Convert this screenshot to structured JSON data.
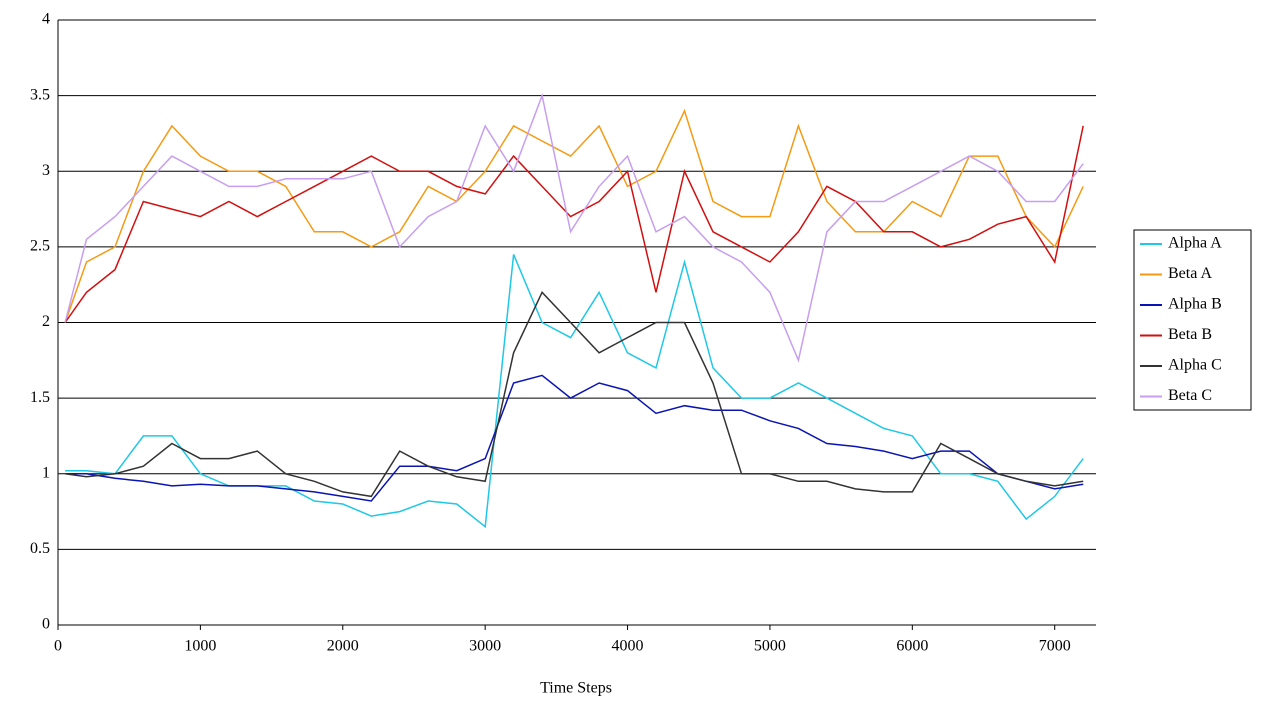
{
  "chart_data": {
    "type": "line",
    "xlabel": "Time Steps",
    "x": [
      50,
      200,
      400,
      600,
      800,
      1000,
      1200,
      1400,
      1600,
      1800,
      2000,
      2200,
      2400,
      2600,
      2800,
      3000,
      3200,
      3400,
      3600,
      3800,
      4000,
      4200,
      4400,
      4600,
      4800,
      5000,
      5200,
      5400,
      5600,
      5800,
      6000,
      6200,
      6400,
      6600,
      6800,
      7000,
      7200
    ],
    "xlim": [
      0,
      7290
    ],
    "xticks": [
      0,
      1000,
      2000,
      3000,
      4000,
      5000,
      6000,
      7000
    ],
    "ylim": [
      0,
      4
    ],
    "yticks": [
      0,
      0.5,
      1,
      1.5,
      2,
      2.5,
      3,
      3.5,
      4
    ],
    "grid": true,
    "legend": "right",
    "series": [
      {
        "name": "Alpha A",
        "color": "#1ec8e6",
        "values": [
          1.02,
          1.02,
          1.0,
          1.25,
          1.25,
          1.0,
          0.92,
          0.92,
          0.92,
          0.82,
          0.8,
          0.72,
          0.75,
          0.82,
          0.8,
          0.65,
          2.45,
          2.0,
          1.9,
          2.2,
          1.8,
          1.7,
          2.4,
          1.7,
          1.5,
          1.5,
          1.6,
          1.5,
          1.4,
          1.3,
          1.25,
          1.0,
          1.0,
          0.95,
          0.7,
          0.85,
          1.1
        ]
      },
      {
        "name": "Beta A",
        "color": "#f59a12",
        "values": [
          2.0,
          2.4,
          2.5,
          3.0,
          3.3,
          3.1,
          3.0,
          3.0,
          2.9,
          2.6,
          2.6,
          2.5,
          2.6,
          2.9,
          2.8,
          3.0,
          3.3,
          3.2,
          3.1,
          3.3,
          2.9,
          3.0,
          3.4,
          2.8,
          2.7,
          2.7,
          3.3,
          2.8,
          2.6,
          2.6,
          2.8,
          2.7,
          3.1,
          3.1,
          2.7,
          2.5,
          2.9
        ]
      },
      {
        "name": "Alpha B",
        "color": "#0a14b4",
        "values": [
          1.0,
          1.0,
          0.97,
          0.95,
          0.92,
          0.93,
          0.92,
          0.92,
          0.9,
          0.88,
          0.85,
          0.82,
          1.05,
          1.05,
          1.02,
          1.1,
          1.6,
          1.65,
          1.5,
          1.6,
          1.55,
          1.4,
          1.45,
          1.42,
          1.42,
          1.35,
          1.3,
          1.2,
          1.18,
          1.15,
          1.1,
          1.15,
          1.15,
          1.0,
          0.95,
          0.9,
          0.93
        ]
      },
      {
        "name": "Beta B",
        "color": "#d20f0f",
        "values": [
          2.0,
          2.2,
          2.35,
          2.8,
          2.75,
          2.7,
          2.8,
          2.7,
          2.8,
          2.9,
          3.0,
          3.1,
          3.0,
          3.0,
          2.9,
          2.85,
          3.1,
          2.9,
          2.7,
          2.8,
          3.0,
          2.2,
          3.0,
          2.6,
          2.5,
          2.4,
          2.6,
          2.9,
          2.8,
          2.6,
          2.6,
          2.5,
          2.55,
          2.65,
          2.7,
          2.4,
          3.3
        ]
      },
      {
        "name": "Alpha C",
        "color": "#333333",
        "values": [
          1.0,
          0.98,
          1.0,
          1.05,
          1.2,
          1.1,
          1.1,
          1.15,
          1.0,
          0.95,
          0.88,
          0.85,
          1.15,
          1.05,
          0.98,
          0.95,
          1.8,
          2.2,
          2.0,
          1.8,
          1.9,
          2.0,
          2.0,
          1.6,
          1.0,
          1.0,
          0.95,
          0.95,
          0.9,
          0.88,
          0.88,
          1.2,
          1.1,
          1.0,
          0.95,
          0.92,
          0.95
        ]
      },
      {
        "name": "Beta C",
        "color": "#c79ef0",
        "values": [
          2.0,
          2.55,
          2.7,
          2.9,
          3.1,
          3.0,
          2.9,
          2.9,
          2.95,
          2.95,
          2.95,
          3.0,
          2.5,
          2.7,
          2.8,
          3.3,
          3.0,
          3.5,
          2.6,
          2.9,
          3.1,
          2.6,
          2.7,
          2.5,
          2.4,
          2.2,
          1.75,
          2.6,
          2.8,
          2.8,
          2.9,
          3.0,
          3.1,
          3.0,
          2.8,
          2.8,
          3.05
        ]
      }
    ]
  }
}
